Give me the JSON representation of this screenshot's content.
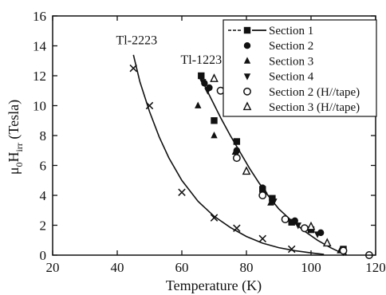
{
  "chart_data": {
    "type": "scatter",
    "xlabel": "Temperature (K)",
    "ylabel": {
      "mu": "μ",
      "sub0": "0",
      "H": "H",
      "subirr": "irr",
      "unit": " (Tesla)"
    },
    "xlim": [
      20,
      120
    ],
    "ylim": [
      0,
      16
    ],
    "x_ticks": [
      "20",
      "40",
      "60",
      "80",
      "100",
      "120"
    ],
    "y_ticks": [
      "0",
      "2",
      "4",
      "6",
      "8",
      "10",
      "12",
      "14",
      "16"
    ],
    "grid": false,
    "legend_position": "top-right",
    "annotations": [
      {
        "text": "Tl-2223",
        "x": 46,
        "y": 14.1
      },
      {
        "text": "Tl-1223",
        "x": 66,
        "y": 12.8
      }
    ],
    "curves": [
      {
        "name": "Tl-2223",
        "x": [
          45,
          47,
          50,
          53,
          56,
          60,
          65,
          70,
          75,
          80,
          85,
          90,
          95,
          100,
          104
        ],
        "y": [
          13.4,
          11.6,
          9.6,
          7.9,
          6.5,
          5.0,
          3.6,
          2.6,
          1.85,
          1.25,
          0.8,
          0.5,
          0.3,
          0.15,
          0.05
        ]
      },
      {
        "name": "Tl-1223",
        "x": [
          66,
          69,
          72,
          75,
          78,
          81,
          84,
          87,
          90,
          94,
          98,
          102,
          106,
          109,
          111
        ],
        "y": [
          11.8,
          10.5,
          9.2,
          8.0,
          6.9,
          5.8,
          4.8,
          3.9,
          3.1,
          2.3,
          1.6,
          1.0,
          0.5,
          0.2,
          0.05
        ]
      }
    ],
    "series_tl2223": {
      "marker": "x",
      "x": [
        45,
        50,
        60,
        70,
        77,
        85,
        94
      ],
      "y": [
        12.5,
        10.0,
        4.2,
        2.5,
        1.8,
        1.1,
        0.4
      ]
    },
    "series": [
      {
        "name": "Section 1",
        "marker": "square-line",
        "x": [
          66,
          70,
          77,
          85,
          88,
          94,
          100,
          110
        ],
        "y": [
          12.0,
          9.0,
          7.6,
          4.4,
          3.8,
          2.2,
          1.7,
          0.4
        ]
      },
      {
        "name": "Section 2",
        "marker": "circle",
        "x": [
          67,
          68.5,
          77,
          85,
          88,
          95,
          103,
          110
        ],
        "y": [
          11.5,
          11.2,
          7.0,
          4.5,
          3.7,
          2.3,
          1.5,
          0.3
        ]
      },
      {
        "name": "Section 3",
        "marker": "triangle-up",
        "x": [
          65,
          70,
          76.5,
          85.5,
          87.5,
          100,
          109
        ],
        "y": [
          10.0,
          8.0,
          6.9,
          4.3,
          3.5,
          1.8,
          0.3
        ]
      },
      {
        "name": "Section 4",
        "marker": "triangle-down",
        "x": [
          66.5,
          68,
          77,
          85.5,
          88.5,
          96,
          102,
          110
        ],
        "y": [
          11.6,
          11.0,
          6.8,
          4.0,
          3.6,
          2.0,
          1.4,
          0.2
        ]
      },
      {
        "name": "Section 2 (H//tape)",
        "marker": "circle-open",
        "x": [
          72,
          77,
          85,
          92,
          98,
          110,
          118
        ],
        "y": [
          11.0,
          6.5,
          4.0,
          2.4,
          1.8,
          0.3,
          0.0
        ]
      },
      {
        "name": "Section 3 (H//tape)",
        "marker": "triangle-open",
        "x": [
          70,
          80,
          100,
          105
        ],
        "y": [
          11.8,
          5.6,
          1.9,
          0.8
        ]
      }
    ]
  }
}
